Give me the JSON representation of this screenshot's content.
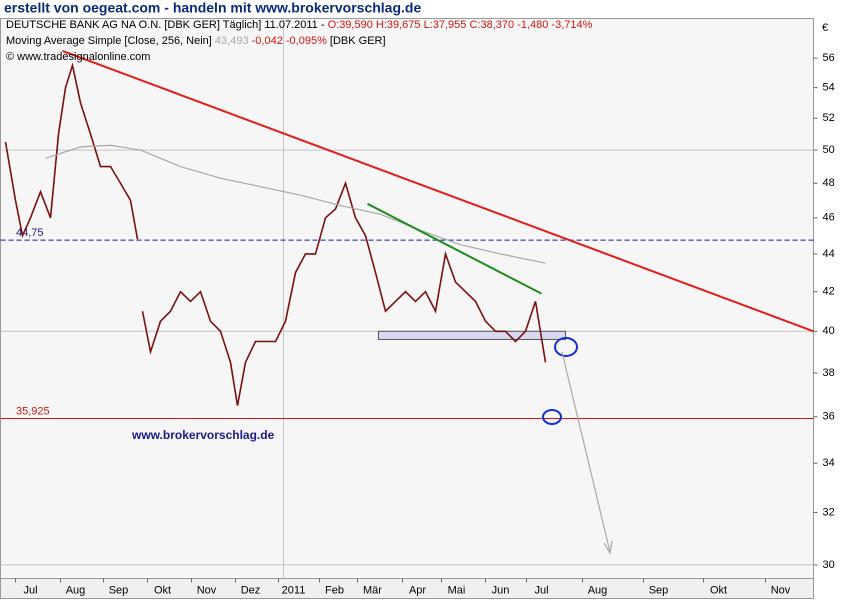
{
  "header": {
    "banner": "erstellt von oegeat.com - handeln mit www.brokervorschlag.de"
  },
  "chart_data": {
    "type": "line",
    "legend": {
      "line1_name": "DEUTSCHE BANK AG NA O.N. [DBK GER]  Täglich] 11.07.2011 -",
      "line1_values": "O:39,590 H:39,675 L:37,955 C:38,370 -1,480 -3,714%",
      "line2_name": "Moving Average Simple [Close, 256, Nein]",
      "line2_last": "43,493",
      "line2_change": "-0,042 -0,095%",
      "line2_symbol": "[DBK GER]"
    },
    "copyright": "© www.tradesignalonline.com",
    "watermark": "www.brokervorschlag.de",
    "currency": "€",
    "log_scale": true,
    "ylim": [
      29.5,
      58.8
    ],
    "yticks": [
      30,
      32,
      34,
      36,
      38,
      40,
      42,
      44,
      46,
      48,
      50,
      52,
      54,
      56
    ],
    "hgrid": [
      30,
      40,
      50
    ],
    "vgrid": [
      141.5
    ],
    "xlim": [
      0,
      406.5
    ],
    "xticks": [
      {
        "value": 15,
        "label": "Jul"
      },
      {
        "value": 37.5,
        "label": "Aug"
      },
      {
        "value": 59,
        "label": "Sep"
      },
      {
        "value": 81,
        "label": "Okt"
      },
      {
        "value": 103,
        "label": "Nov"
      },
      {
        "value": 125,
        "label": "Dez"
      },
      {
        "value": 146.5,
        "label": "2011"
      },
      {
        "value": 167,
        "label": "Feb"
      },
      {
        "value": 186,
        "label": "Mär"
      },
      {
        "value": 208.5,
        "label": "Apr"
      },
      {
        "value": 228,
        "label": "Mai"
      },
      {
        "value": 250,
        "label": "Jun"
      },
      {
        "value": 270.5,
        "label": "Jul"
      },
      {
        "value": 298.5,
        "label": "Aug"
      },
      {
        "value": 329,
        "label": "Sep"
      },
      {
        "value": 359,
        "label": "Okt"
      },
      {
        "value": 390,
        "label": "Nov"
      }
    ],
    "series": [
      {
        "color": "#7a1010",
        "x": [
          2.5,
          7.5,
          11,
          15,
          20,
          25,
          29,
          32.5,
          36,
          40,
          45,
          50,
          55,
          60,
          65,
          68.5,
          69.5,
          71,
          75,
          80,
          85,
          90,
          95,
          100,
          105,
          110,
          115,
          118.5,
          122.5,
          127.5,
          132.5,
          137.5,
          142.5,
          147.5,
          152.5,
          157.5,
          162.5,
          167.5,
          172.5,
          177.5,
          182.5,
          187.5,
          192.5,
          197.5,
          202.5,
          207.5,
          212.5,
          217.5,
          222.5,
          227.5,
          232.5,
          237.5,
          242.5,
          247.5,
          252.5,
          257.5,
          262.5,
          267.5,
          272.5
        ],
        "values": [
          50.5,
          47,
          45,
          46,
          47.5,
          46,
          51,
          54,
          55.5,
          53,
          51,
          49,
          49,
          48,
          47,
          44.8,
          null,
          41,
          39,
          40.5,
          41,
          42,
          41.5,
          42,
          40.5,
          40,
          38.5,
          36.5,
          38.5,
          39.5,
          39.5,
          39.5,
          40.5,
          43,
          44,
          44,
          46,
          46.5,
          48,
          46,
          45,
          43,
          41,
          41.5,
          42,
          41.5,
          42,
          41,
          44,
          42.5,
          42,
          41.5,
          40.5,
          40,
          40,
          39.5,
          40,
          41.5,
          38.5
        ]
      },
      {
        "color": "#a8a8a8",
        "x": [
          22.5,
          40,
          55,
          70,
          90,
          110,
          130,
          150,
          170,
          190,
          210,
          230,
          250,
          272.5
        ],
        "values": [
          49.5,
          50.2,
          50.3,
          50,
          49,
          48.3,
          47.8,
          47.3,
          46.7,
          46.2,
          45.3,
          44.5,
          44,
          43.5
        ]
      }
    ],
    "trendlines": [
      {
        "color": "#e41b17",
        "x": [
          31,
          406.5
        ],
        "values": [
          56.5,
          40
        ]
      },
      {
        "color": "#1e8c1e",
        "x": [
          183.5,
          270.5
        ],
        "values": [
          46.8,
          41.9
        ]
      }
    ],
    "levels": [
      {
        "value": 44.75,
        "label": "44,75",
        "color": "#1a1a8c",
        "dashed": true
      },
      {
        "value": 35.925,
        "label": "35,925",
        "color": "#d41515",
        "dashed": false
      }
    ],
    "support_box": {
      "x": [
        189,
        282.5
      ],
      "values": [
        39.6,
        40
      ]
    }
  }
}
